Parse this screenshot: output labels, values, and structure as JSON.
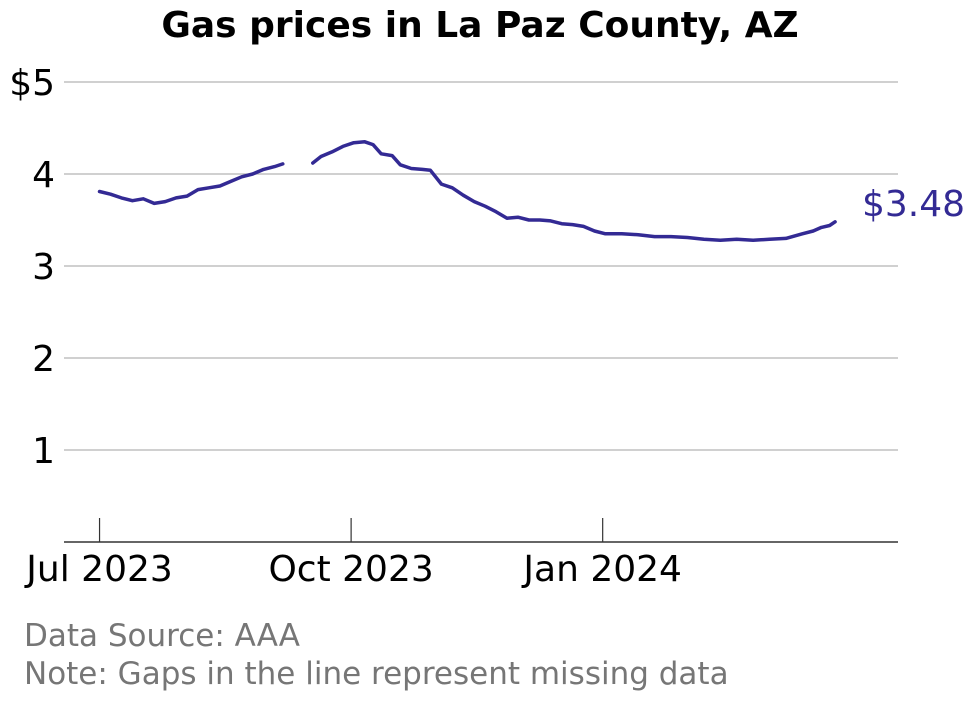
{
  "chart_data": {
    "type": "line",
    "title": "Gas prices in La Paz County, AZ",
    "xlabel": "",
    "ylabel": "",
    "ylim": [
      0,
      5
    ],
    "yticks": [
      1,
      2,
      3,
      4,
      5
    ],
    "ytick_labels": [
      "1",
      "2",
      "3",
      "4",
      "$5"
    ],
    "xlim": [
      "2023-06-18",
      "2024-04-18"
    ],
    "xticks": [
      "2023-07-01",
      "2023-10-01",
      "2024-01-01"
    ],
    "xtick_labels": [
      "Jul 2023",
      "Oct 2023",
      "Jan 2024"
    ],
    "grid": "horizontal",
    "line_color": "#332a94",
    "end_label": "$3.48",
    "segments": [
      {
        "x": [
          "2023-07-01",
          "2023-07-05",
          "2023-07-09",
          "2023-07-13",
          "2023-07-17",
          "2023-07-21",
          "2023-07-25",
          "2023-07-29",
          "2023-08-02",
          "2023-08-06",
          "2023-08-10",
          "2023-08-14",
          "2023-08-18",
          "2023-08-22",
          "2023-08-26",
          "2023-08-30",
          "2023-09-03",
          "2023-09-06"
        ],
        "y": [
          3.81,
          3.78,
          3.74,
          3.71,
          3.73,
          3.68,
          3.7,
          3.74,
          3.76,
          3.83,
          3.85,
          3.87,
          3.92,
          3.97,
          4.0,
          4.05,
          4.08,
          4.11
        ]
      },
      {
        "x": [
          "2023-09-17",
          "2023-09-20",
          "2023-09-24",
          "2023-09-28",
          "2023-10-02",
          "2023-10-06",
          "2023-10-09",
          "2023-10-12",
          "2023-10-16",
          "2023-10-19",
          "2023-10-23",
          "2023-10-27",
          "2023-10-30",
          "2023-11-03",
          "2023-11-07",
          "2023-11-11",
          "2023-11-15",
          "2023-11-19",
          "2023-11-23",
          "2023-11-27",
          "2023-12-01",
          "2023-12-05",
          "2023-12-09",
          "2023-12-13",
          "2023-12-17",
          "2023-12-21",
          "2023-12-25",
          "2023-12-29",
          "2024-01-02",
          "2024-01-08",
          "2024-01-14",
          "2024-01-20",
          "2024-01-26",
          "2024-02-01",
          "2024-02-07",
          "2024-02-13",
          "2024-02-19",
          "2024-02-25",
          "2024-03-02",
          "2024-03-08",
          "2024-03-14",
          "2024-03-18",
          "2024-03-21",
          "2024-03-24",
          "2024-03-26"
        ],
        "y": [
          4.12,
          4.19,
          4.24,
          4.3,
          4.34,
          4.35,
          4.32,
          4.22,
          4.2,
          4.1,
          4.06,
          4.05,
          4.04,
          3.89,
          3.85,
          3.77,
          3.7,
          3.65,
          3.59,
          3.52,
          3.53,
          3.5,
          3.5,
          3.49,
          3.46,
          3.45,
          3.43,
          3.38,
          3.35,
          3.35,
          3.34,
          3.32,
          3.32,
          3.31,
          3.29,
          3.28,
          3.29,
          3.28,
          3.29,
          3.3,
          3.35,
          3.38,
          3.42,
          3.44,
          3.48
        ]
      }
    ]
  },
  "notes": {
    "source": "Data Source: AAA",
    "gaps": "Note: Gaps in the line represent missing data"
  }
}
